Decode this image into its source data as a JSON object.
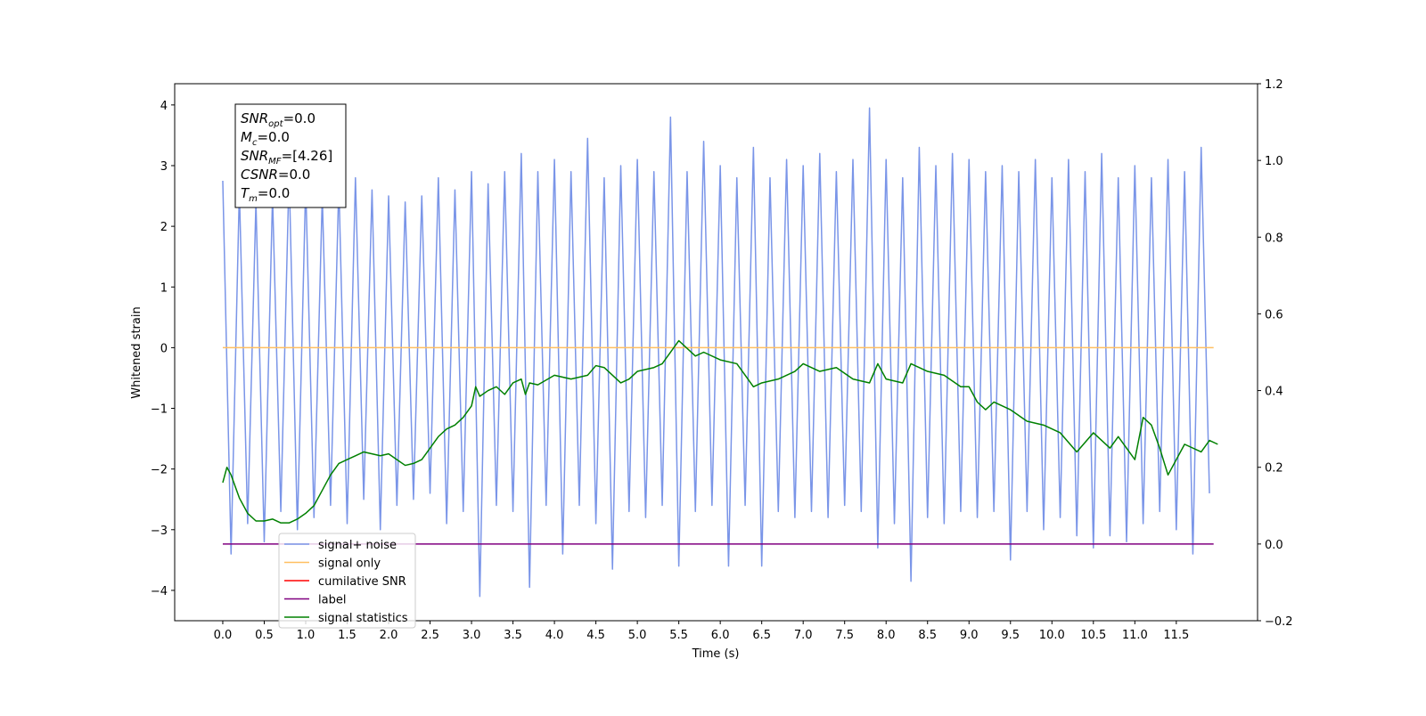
{
  "chart_data": {
    "type": "line",
    "xlabel": "Time (s)",
    "ylabel": "Whitened strain",
    "xlim": [
      -0.58,
      12.48
    ],
    "ylim": [
      -4.5,
      4.35
    ],
    "y2lim": [
      -0.2,
      1.2
    ],
    "xticks": [
      {
        "value": 0,
        "label": "0.0"
      },
      0.5,
      {
        "value": 1,
        "label": "1.0"
      },
      1.5,
      {
        "value": 2,
        "label": "2.0"
      },
      2.5,
      {
        "value": 3,
        "label": "3.0"
      },
      3.5,
      {
        "value": 4,
        "label": "4.0"
      },
      4.5,
      {
        "value": 5,
        "label": "5.0"
      },
      5.5,
      {
        "value": 6,
        "label": "6.0"
      },
      6.5,
      {
        "value": 7,
        "label": "7.0"
      },
      7.5,
      {
        "value": 8,
        "label": "8.0"
      },
      8.5,
      {
        "value": 9,
        "label": "9.0"
      },
      9.5,
      {
        "value": 10,
        "label": "10.0"
      },
      10.5,
      {
        "value": 11,
        "label": "11.0"
      },
      11.5
    ],
    "yticks": [
      {
        "value": -4,
        "label": "−4"
      },
      {
        "value": -3,
        "label": "−3"
      },
      {
        "value": -2,
        "label": "−2"
      },
      {
        "value": -1,
        "label": "−1"
      },
      0,
      1,
      2,
      3,
      4
    ],
    "y2ticks": [
      {
        "value": -0.2,
        "label": "−0.2"
      },
      {
        "value": 0,
        "label": "0.0"
      },
      0.2,
      0.4,
      0.6,
      0.8,
      {
        "value": 1,
        "label": "1.0"
      },
      1.2
    ],
    "legend": "lower left",
    "annotation": [
      {
        "main": "SNR",
        "sub": "opt",
        "rest": "=0.0"
      },
      {
        "main": "M",
        "sub": "c",
        "rest": "=0.0"
      },
      {
        "main": "SNR",
        "sub": "MF",
        "rest": "=[4.26]"
      },
      {
        "main": "CSNR",
        "rest": "=0.0"
      },
      {
        "main": "T",
        "sub": "m",
        "rest": "=0.0"
      }
    ],
    "series": [
      {
        "name": "signal+ noise",
        "color": "#7a95e8",
        "x": [
          0,
          0.1,
          0.2,
          0.3,
          0.4,
          0.5,
          0.6,
          0.7,
          0.8,
          0.9,
          1,
          1.1,
          1.2,
          1.3,
          1.4,
          1.5,
          1.6,
          1.7,
          1.8,
          1.9,
          2,
          2.1,
          2.2,
          2.3,
          2.4,
          2.5,
          2.6,
          2.7,
          2.8,
          2.9,
          3,
          3.1,
          3.2,
          3.3,
          3.4,
          3.5,
          3.6,
          3.7,
          3.8,
          3.9,
          4,
          4.1,
          4.2,
          4.3,
          4.4,
          4.5,
          4.6,
          4.7,
          4.8,
          4.9,
          5,
          5.1,
          5.2,
          5.3,
          5.4,
          5.5,
          5.6,
          5.7,
          5.8,
          5.9,
          6,
          6.1,
          6.2,
          6.3,
          6.4,
          6.5,
          6.6,
          6.7,
          6.8,
          6.9,
          7,
          7.1,
          7.2,
          7.3,
          7.4,
          7.5,
          7.6,
          7.7,
          7.8,
          7.9,
          8,
          8.1,
          8.2,
          8.3,
          8.4,
          8.5,
          8.6,
          8.7,
          8.8,
          8.9,
          9,
          9.1,
          9.2,
          9.3,
          9.4,
          9.5,
          9.6,
          9.7,
          9.8,
          9.9,
          10,
          10.1,
          10.2,
          10.3,
          10.4,
          10.5,
          10.6,
          10.7,
          10.8,
          10.9,
          11,
          11.1,
          11.2,
          11.3,
          11.4,
          11.5,
          11.6,
          11.7,
          11.8,
          11.9
        ],
        "values": [
          2.75,
          -3.4,
          2.6,
          -2.9,
          2.4,
          -3.2,
          2.5,
          -2.7,
          2.9,
          -3.0,
          2.7,
          -2.8,
          2.5,
          -2.6,
          2.7,
          -2.9,
          2.8,
          -2.5,
          2.6,
          -3.0,
          2.5,
          -2.6,
          2.4,
          -2.5,
          2.5,
          -2.4,
          2.8,
          -2.9,
          2.6,
          -2.7,
          2.9,
          -4.1,
          2.7,
          -2.6,
          2.9,
          -2.7,
          3.2,
          -3.95,
          2.9,
          -2.6,
          3.1,
          -3.4,
          2.9,
          -2.6,
          3.45,
          -2.9,
          2.8,
          -3.65,
          3.0,
          -2.7,
          3.1,
          -2.8,
          2.9,
          -2.6,
          3.8,
          -3.6,
          2.9,
          -2.7,
          3.4,
          -2.6,
          3.0,
          -3.6,
          2.8,
          -2.6,
          3.3,
          -3.6,
          2.8,
          -2.7,
          3.1,
          -2.8,
          3.0,
          -2.7,
          3.2,
          -2.8,
          2.9,
          -2.6,
          3.1,
          -2.7,
          3.95,
          -3.3,
          3.1,
          -2.9,
          2.8,
          -3.85,
          3.3,
          -2.8,
          3.0,
          -2.9,
          3.2,
          -2.7,
          3.1,
          -2.8,
          2.9,
          -2.7,
          3.0,
          -3.5,
          2.9,
          -2.7,
          3.1,
          -3.0,
          2.8,
          -2.8,
          3.1,
          -3.1,
          2.9,
          -3.3,
          3.2,
          -3.1,
          2.8,
          -3.2,
          3.0,
          -2.9,
          2.8,
          -2.7,
          3.1,
          -3.0,
          2.9,
          -3.4,
          3.3,
          -2.4
        ]
      },
      {
        "name": "signal only",
        "color": "#ffbf60",
        "x": [
          0,
          11.95
        ],
        "values": [
          0,
          0
        ]
      },
      {
        "name": "cumilative SNR",
        "color": "#ff0000"
      },
      {
        "name": "label",
        "color": "#800080",
        "axis": "y2",
        "x": [
          0,
          11.95
        ],
        "values": [
          0,
          0
        ]
      },
      {
        "name": "signal statistics",
        "color": "#008000",
        "axis": "y2",
        "x": [
          0,
          0.05,
          0.1,
          0.2,
          0.3,
          0.4,
          0.5,
          0.6,
          0.7,
          0.8,
          0.9,
          1,
          1.1,
          1.2,
          1.3,
          1.4,
          1.5,
          1.6,
          1.7,
          1.8,
          1.9,
          2,
          2.1,
          2.2,
          2.3,
          2.4,
          2.5,
          2.6,
          2.7,
          2.8,
          2.9,
          3,
          3.05,
          3.1,
          3.2,
          3.3,
          3.4,
          3.5,
          3.6,
          3.65,
          3.7,
          3.8,
          4,
          4.2,
          4.4,
          4.5,
          4.6,
          4.8,
          4.9,
          5,
          5.2,
          5.3,
          5.5,
          5.7,
          5.8,
          6,
          6.2,
          6.3,
          6.4,
          6.5,
          6.7,
          6.9,
          7,
          7.2,
          7.4,
          7.6,
          7.8,
          7.9,
          8,
          8.2,
          8.3,
          8.5,
          8.7,
          8.9,
          9,
          9.1,
          9.2,
          9.3,
          9.5,
          9.7,
          9.9,
          10.1,
          10.3,
          10.5,
          10.7,
          10.8,
          11,
          11.1,
          11.2,
          11.3,
          11.4,
          11.6,
          11.8,
          11.9,
          12
        ],
        "values": [
          0.16,
          0.2,
          0.18,
          0.12,
          0.08,
          0.06,
          0.06,
          0.065,
          0.055,
          0.055,
          0.065,
          0.08,
          0.1,
          0.14,
          0.18,
          0.21,
          0.22,
          0.23,
          0.24,
          0.235,
          0.23,
          0.235,
          0.22,
          0.205,
          0.21,
          0.22,
          0.25,
          0.28,
          0.3,
          0.31,
          0.33,
          0.36,
          0.41,
          0.385,
          0.4,
          0.41,
          0.39,
          0.42,
          0.43,
          0.39,
          0.42,
          0.415,
          0.44,
          0.43,
          0.44,
          0.465,
          0.46,
          0.42,
          0.43,
          0.45,
          0.46,
          0.47,
          0.53,
          0.49,
          0.5,
          0.48,
          0.47,
          0.44,
          0.41,
          0.42,
          0.43,
          0.45,
          0.47,
          0.45,
          0.46,
          0.43,
          0.42,
          0.47,
          0.43,
          0.42,
          0.47,
          0.45,
          0.44,
          0.41,
          0.41,
          0.37,
          0.35,
          0.37,
          0.35,
          0.32,
          0.31,
          0.29,
          0.24,
          0.29,
          0.25,
          0.28,
          0.22,
          0.33,
          0.31,
          0.25,
          0.18,
          0.26,
          0.24,
          0.27,
          0.26
        ]
      }
    ]
  }
}
